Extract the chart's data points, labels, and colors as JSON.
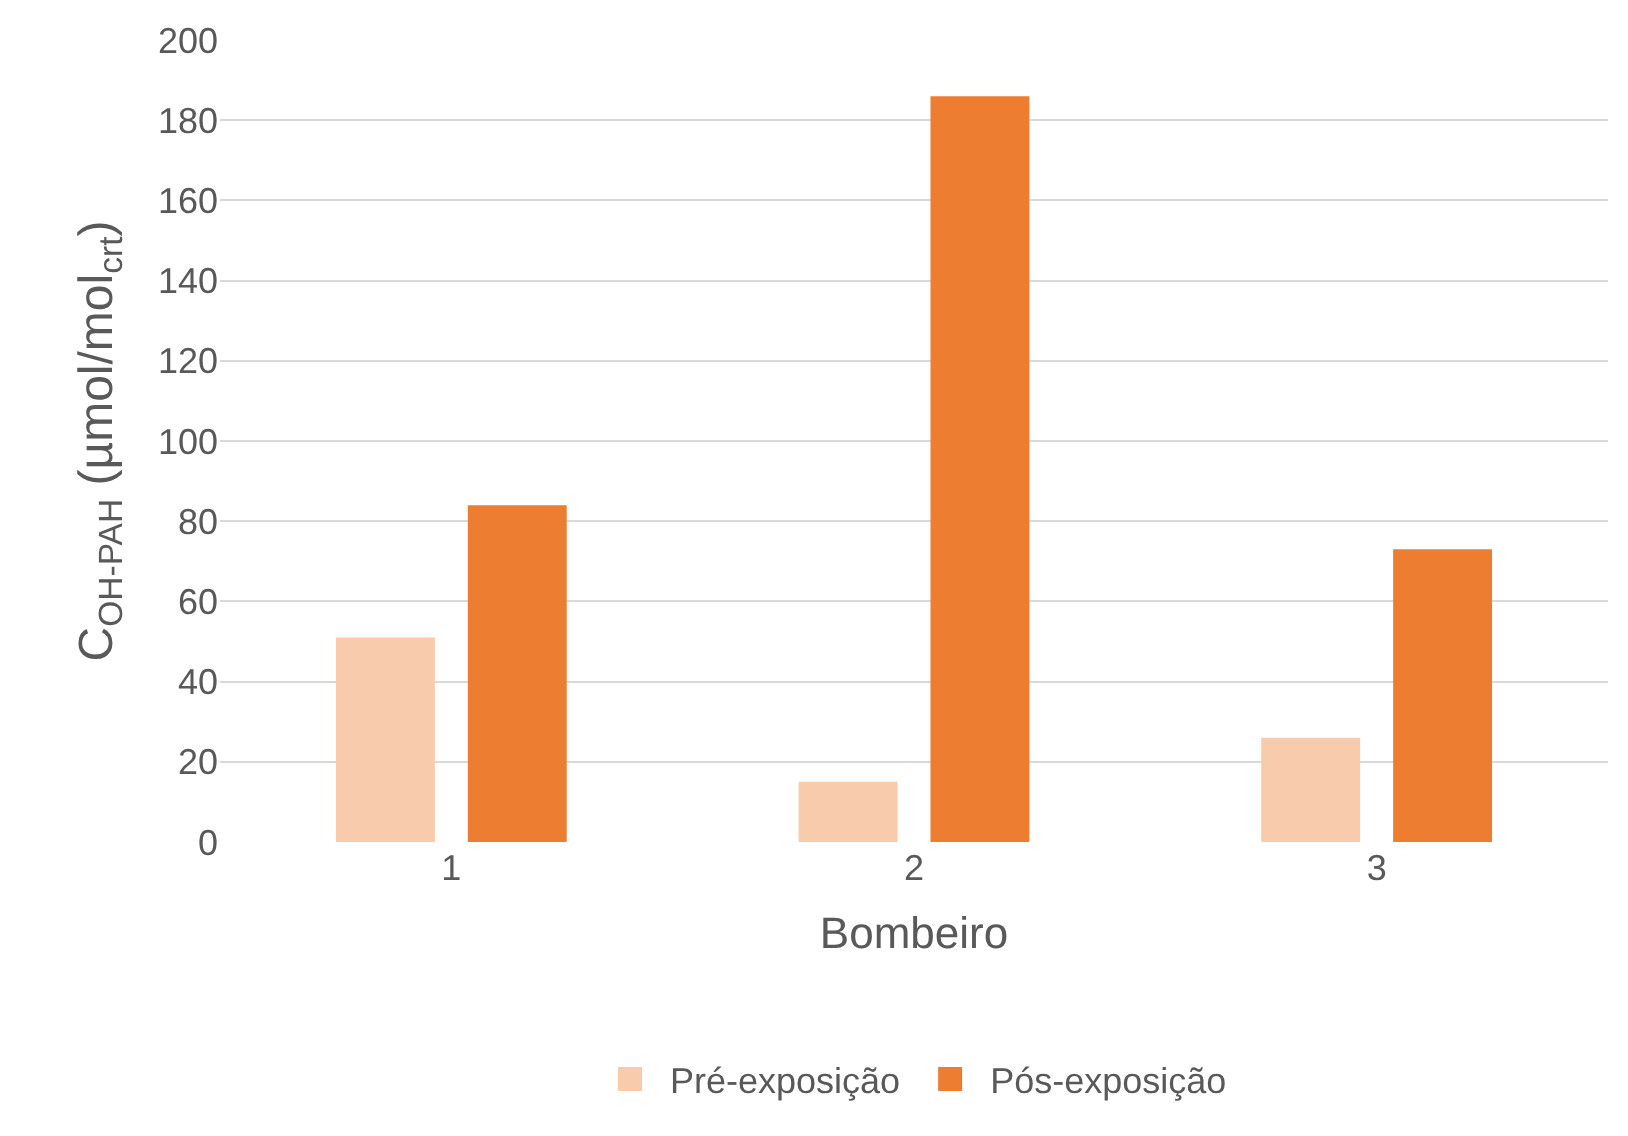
{
  "chart_data": {
    "type": "bar",
    "xlabel": "Bombeiro",
    "ylabel": "C$_{OH-PAH}$ (µmol/mol$_{crt}$)",
    "categories": [
      "1",
      "2",
      "3"
    ],
    "series": [
      {
        "name": "Pré-exposição",
        "color": "#f8cbad",
        "values": [
          51,
          15,
          26
        ]
      },
      {
        "name": "Pós-exposição",
        "color": "#ed7d31",
        "values": [
          84,
          186,
          73
        ]
      }
    ],
    "ylim": [
      0,
      200
    ],
    "yticks": [
      0,
      20,
      40,
      60,
      80,
      100,
      120,
      140,
      160,
      180,
      200
    ],
    "grid": "y",
    "legend": "bottom"
  }
}
